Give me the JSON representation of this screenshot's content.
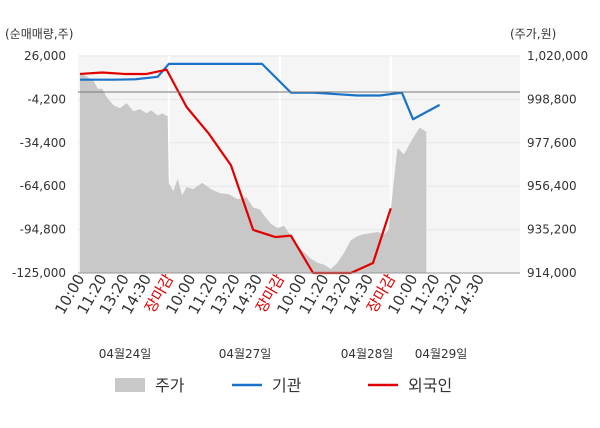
{
  "chart_data": {
    "type": "line",
    "left_axis_unit": "(순매매량,주)",
    "right_axis_unit": "(주가,원)",
    "y_left_ticks": [
      "26,000",
      "-4,200",
      "-34,400",
      "-64,600",
      "-94,800",
      "-125,000"
    ],
    "y_left_range": [
      -125000,
      26000
    ],
    "y_right_ticks": [
      "1,020,000",
      "998,800",
      "977,600",
      "956,400",
      "935,200",
      "914,000"
    ],
    "y_right_range": [
      914000,
      1020000
    ],
    "x_ticks": [
      {
        "label": "10:00",
        "red": false
      },
      {
        "label": "11:20",
        "red": false
      },
      {
        "label": "13:20",
        "red": false
      },
      {
        "label": "14:30",
        "red": false
      },
      {
        "label": "장마감",
        "red": true
      },
      {
        "label": "10:00",
        "red": false
      },
      {
        "label": "11:20",
        "red": false
      },
      {
        "label": "13:20",
        "red": false
      },
      {
        "label": "14:30",
        "red": false
      },
      {
        "label": "장마감",
        "red": true
      },
      {
        "label": "10:00",
        "red": false
      },
      {
        "label": "11:20",
        "red": false
      },
      {
        "label": "13:20",
        "red": false
      },
      {
        "label": "14:30",
        "red": false
      },
      {
        "label": "장마감",
        "red": true
      },
      {
        "label": "10:00",
        "red": false
      },
      {
        "label": "11:20",
        "red": false
      },
      {
        "label": "13:20",
        "red": false
      },
      {
        "label": "14:30",
        "red": false
      }
    ],
    "dates": [
      "04월24일",
      "04월27일",
      "04월28일",
      "04월29일"
    ],
    "session_separators": [
      4,
      9,
      14
    ],
    "series": [
      {
        "name": "기관",
        "color": "#1a73c8",
        "axis": "left",
        "points": [
          [
            0,
            9500
          ],
          [
            1.5,
            9500
          ],
          [
            2.5,
            9800
          ],
          [
            3.5,
            11500
          ],
          [
            4,
            20500
          ],
          [
            5,
            20500
          ],
          [
            6,
            20500
          ],
          [
            7,
            20500
          ],
          [
            8.2,
            20500
          ],
          [
            9.5,
            500
          ],
          [
            10.5,
            500
          ],
          [
            11.5,
            -500
          ],
          [
            12.5,
            -1500
          ],
          [
            13.5,
            -1500
          ],
          [
            14.5,
            500
          ],
          [
            15,
            -18000
          ],
          [
            16.2,
            -8000
          ]
        ]
      },
      {
        "name": "외국인",
        "color": "#e00000",
        "axis": "left",
        "points": [
          [
            0,
            13500
          ],
          [
            1,
            14500
          ],
          [
            2,
            13500
          ],
          [
            3,
            13500
          ],
          [
            3.9,
            16500
          ],
          [
            4.8,
            -9500
          ],
          [
            5.8,
            -28000
          ],
          [
            6.8,
            -50000
          ],
          [
            7.8,
            -95000
          ],
          [
            8.8,
            -100000
          ],
          [
            9.5,
            -99000
          ],
          [
            10.5,
            -125000
          ],
          [
            11.5,
            -125000
          ],
          [
            12.2,
            -125000
          ],
          [
            13.2,
            -118000
          ],
          [
            14,
            -80000
          ]
        ]
      },
      {
        "name": "주가",
        "color": "#c8c8c8",
        "axis": "right",
        "type": "area",
        "points": [
          [
            0,
            1012000
          ],
          [
            0.3,
            1010000
          ],
          [
            0.6,
            1008000
          ],
          [
            0.8,
            1004000
          ],
          [
            1,
            1004000
          ],
          [
            1.2,
            1000000
          ],
          [
            1.5,
            996000
          ],
          [
            1.8,
            994500
          ],
          [
            2.1,
            997000
          ],
          [
            2.4,
            993000
          ],
          [
            2.7,
            994000
          ],
          [
            3,
            992000
          ],
          [
            3.2,
            993500
          ],
          [
            3.5,
            991000
          ],
          [
            3.7,
            992000
          ],
          [
            3.95,
            990500
          ],
          [
            4,
            958000
          ],
          [
            4.2,
            954000
          ],
          [
            4.4,
            960000
          ],
          [
            4.6,
            952000
          ],
          [
            4.8,
            956000
          ],
          [
            5.1,
            955000
          ],
          [
            5.5,
            958000
          ],
          [
            5.9,
            955000
          ],
          [
            6.3,
            953000
          ],
          [
            6.7,
            952500
          ],
          [
            7.1,
            950000
          ],
          [
            7.5,
            951000
          ],
          [
            7.8,
            946000
          ],
          [
            8.1,
            945000
          ],
          [
            8.3,
            942000
          ],
          [
            8.6,
            938000
          ],
          [
            8.9,
            936000
          ],
          [
            9.2,
            937000
          ],
          [
            9.5,
            932000
          ],
          [
            9.8,
            927000
          ],
          [
            10.1,
            924000
          ],
          [
            10.4,
            921000
          ],
          [
            10.7,
            919000
          ],
          [
            11.0,
            918000
          ],
          [
            11.3,
            916000
          ],
          [
            11.6,
            919000
          ],
          [
            11.9,
            924000
          ],
          [
            12.2,
            930000
          ],
          [
            12.5,
            932000
          ],
          [
            12.8,
            933000
          ],
          [
            13.1,
            933500
          ],
          [
            13.4,
            934000
          ],
          [
            13.7,
            933000
          ],
          [
            13.9,
            935000
          ],
          [
            14.1,
            955000
          ],
          [
            14.3,
            975000
          ],
          [
            14.6,
            972000
          ],
          [
            15,
            980000
          ],
          [
            15.3,
            985000
          ],
          [
            15.6,
            983000
          ]
        ]
      }
    ],
    "legend": [
      "주가",
      "기관",
      "외국인"
    ],
    "legend_placement": "bottom"
  }
}
